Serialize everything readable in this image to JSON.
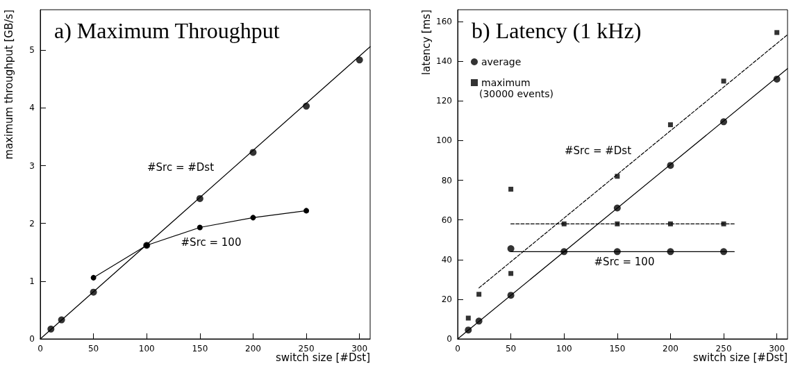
{
  "chart_data": [
    {
      "type": "scatter",
      "title": "a) Maximum Throughput",
      "xlabel": "switch size [#Dst]",
      "ylabel": "maximum throughput [GB/s]",
      "xlim": [
        0,
        310
      ],
      "xticks": [
        0,
        50,
        100,
        150,
        200,
        250,
        300
      ],
      "ylim": [
        0,
        5.7
      ],
      "yticks": [
        0,
        1,
        2,
        3,
        4,
        5
      ],
      "grid": false,
      "legend": false,
      "marker": "circle",
      "series": [
        {
          "color": "#000000",
          "x": [
            10,
            20,
            50,
            100,
            150,
            200,
            250,
            300
          ],
          "values": [
            0.17,
            0.33,
            0.81,
            1.62,
            2.43,
            3.23,
            4.03,
            4.83
          ]
        },
        {
          "type": "line",
          "color": "#000000",
          "x": [
            50,
            100,
            150,
            200,
            250
          ],
          "values": [
            1.06,
            1.62,
            1.93,
            2.1,
            2.22
          ],
          "line_style": "solid"
        },
        {
          "type": "line",
          "color": "#000000",
          "marker": "none",
          "line_style": "solid",
          "x": [
            0,
            310
          ],
          "values": [
            0,
            5.06
          ]
        }
      ],
      "annotations": [
        "#Src = #Dst",
        "#Src = 100"
      ]
    },
    {
      "type": "scatter",
      "title": "b) Latency (1 kHz)",
      "xlabel": "switch size [#Dst]",
      "ylabel": "latency [ms]",
      "xlim": [
        0,
        310
      ],
      "xticks": [
        0,
        50,
        100,
        150,
        200,
        250,
        300
      ],
      "ylim": [
        0,
        166
      ],
      "yticks": [
        0,
        20,
        40,
        60,
        80,
        100,
        120,
        140,
        160
      ],
      "grid": false,
      "legend": "top left",
      "series": [
        {
          "name": "average",
          "marker": "circle",
          "color": "#000000",
          "x": [
            10,
            20,
            50,
            100,
            150,
            200,
            250,
            300,
            50,
            150,
            200,
            250
          ],
          "values": [
            4.5,
            9,
            22,
            44,
            66,
            87.5,
            109.5,
            131,
            45.5,
            44,
            44,
            44
          ]
        },
        {
          "name": "maximum",
          "marker": "square",
          "color": "#000000",
          "x": [
            10,
            20,
            50,
            150,
            200,
            250,
            300,
            50,
            100,
            150,
            200,
            250
          ],
          "values": [
            10.5,
            22.5,
            33,
            82,
            108,
            130,
            154.5,
            75.5,
            58,
            58,
            58,
            58
          ]
        },
        {
          "type": "line",
          "color": "#000000",
          "marker": "none",
          "line_style": "solid",
          "x": [
            0,
            310
          ],
          "values": [
            0,
            136.3
          ]
        },
        {
          "type": "line",
          "color": "#000000",
          "marker": "none",
          "line_style": "dashed",
          "x": [
            20,
            310
          ],
          "values": [
            25.7,
            153.4
          ]
        },
        {
          "type": "line",
          "color": "#000000",
          "marker": "none",
          "line_style": "solid",
          "x": [
            50,
            260
          ],
          "values": [
            44,
            44
          ]
        },
        {
          "type": "line",
          "color": "#000000",
          "marker": "none",
          "line_style": "dashed",
          "x": [
            50,
            260
          ],
          "values": [
            58,
            58
          ]
        }
      ],
      "annotations": [
        "(30000 events)",
        "#Src = #Dst",
        "#Src = 100"
      ]
    }
  ]
}
